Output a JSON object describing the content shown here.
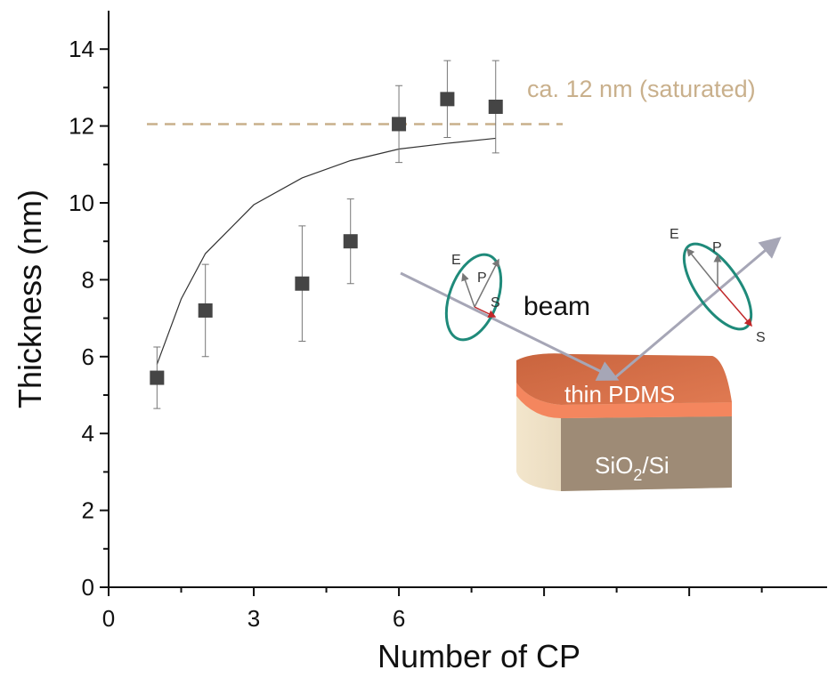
{
  "chart_data": {
    "type": "scatter",
    "x_label": "Number of CP",
    "y_label": "Thickness (nm)",
    "x": [
      1,
      2,
      4,
      5,
      6,
      7,
      8
    ],
    "values": [
      5.45,
      7.2,
      7.9,
      9.0,
      12.05,
      12.7,
      12.5
    ],
    "errors": [
      0.8,
      1.2,
      1.5,
      1.1,
      1.0,
      1.0,
      1.2
    ],
    "color": "#454545",
    "fit": {
      "x": [
        1,
        1.5,
        2,
        3,
        4,
        5,
        6,
        7,
        8
      ],
      "y": [
        5.8,
        7.5,
        8.68,
        9.95,
        10.65,
        11.1,
        11.4,
        11.55,
        11.68
      ],
      "color": "#333333"
    },
    "reference_line": {
      "value": 12.05,
      "color": "#c9b08c",
      "label": "ca. 12 nm (saturated)"
    },
    "xlim": [
      0,
      14.85
    ],
    "ylim": [
      0,
      15
    ],
    "xticks": [
      0,
      3,
      6
    ],
    "yticks": [
      0,
      2,
      4,
      6,
      8,
      10,
      12,
      14
    ],
    "inset": {
      "beam": "beam",
      "layer": "thin PDMS",
      "substrate": "SiO",
      "substrate_sub": "2",
      "substrate_suffix": "/Si",
      "incident_labels": [
        "E",
        "P",
        "S"
      ],
      "reflected_labels": [
        "E",
        "P",
        "S"
      ]
    }
  }
}
